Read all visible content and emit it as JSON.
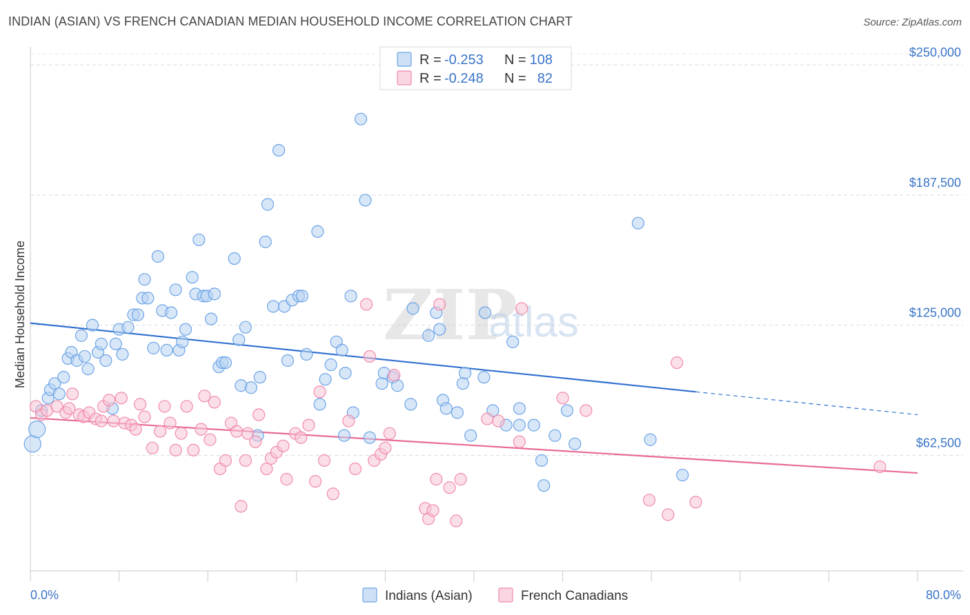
{
  "header": {
    "title": "INDIAN (ASIAN) VS FRENCH CANADIAN MEDIAN HOUSEHOLD INCOME CORRELATION CHART",
    "source": "Source: ZipAtlas.com"
  },
  "watermark": {
    "part1": "ZIP",
    "part2": "atlas"
  },
  "stats": [
    {
      "r_label": "R = ",
      "r_value": "-0.253",
      "n_label": "N = ",
      "n_value": "108",
      "color": "#6ba3e6"
    },
    {
      "r_label": "R = ",
      "r_value": "-0.248",
      "n_label": "N = ",
      "n_value": "82",
      "color": "#f08aab"
    }
  ],
  "chart_data": {
    "type": "scatter",
    "title": "INDIAN (ASIAN) VS FRENCH CANADIAN MEDIAN HOUSEHOLD INCOME CORRELATION CHART",
    "xlabel": "",
    "ylabel": "Median Household Income",
    "xlim": [
      0,
      80
    ],
    "ylim": [
      7000,
      258000
    ],
    "x_tick_labels": [
      "0.0%",
      "80.0%"
    ],
    "y_ticks": [
      62500,
      125000,
      187500,
      250000
    ],
    "y_tick_labels": [
      "$62,500",
      "$125,000",
      "$187,500",
      "$250,000"
    ],
    "grid": true,
    "legend_position": "bottom",
    "series": [
      {
        "name": "Indians (Asian)",
        "color": "#6ba3e6",
        "fill": "#b8d3f2",
        "r": -0.253,
        "n": 108,
        "trend": {
          "x0": 0,
          "y0": 126000,
          "x1": 60,
          "y1": 93000,
          "x_dash_end": 80,
          "y_dash_end": 82000
        },
        "points": [
          [
            0.2,
            68000
          ],
          [
            0.6,
            75000
          ],
          [
            1.0,
            84000
          ],
          [
            1.6,
            90000
          ],
          [
            1.8,
            94000
          ],
          [
            2.2,
            97000
          ],
          [
            2.6,
            92000
          ],
          [
            3.0,
            100000
          ],
          [
            3.4,
            109000
          ],
          [
            3.7,
            112000
          ],
          [
            4.2,
            108000
          ],
          [
            4.6,
            120000
          ],
          [
            4.9,
            110000
          ],
          [
            5.2,
            104000
          ],
          [
            5.6,
            125000
          ],
          [
            6.1,
            112000
          ],
          [
            6.4,
            116000
          ],
          [
            6.8,
            108000
          ],
          [
            7.4,
            85000
          ],
          [
            7.7,
            116000
          ],
          [
            8.0,
            123000
          ],
          [
            8.3,
            111000
          ],
          [
            8.8,
            124000
          ],
          [
            9.3,
            130000
          ],
          [
            9.7,
            130000
          ],
          [
            10.1,
            138000
          ],
          [
            10.3,
            147000
          ],
          [
            10.6,
            138000
          ],
          [
            11.1,
            114000
          ],
          [
            11.5,
            158000
          ],
          [
            11.9,
            132000
          ],
          [
            12.3,
            113000
          ],
          [
            12.7,
            131000
          ],
          [
            13.1,
            142000
          ],
          [
            13.4,
            113000
          ],
          [
            13.7,
            117000
          ],
          [
            14.0,
            123000
          ],
          [
            14.6,
            148000
          ],
          [
            14.9,
            140000
          ],
          [
            15.2,
            166000
          ],
          [
            15.6,
            139000
          ],
          [
            15.9,
            139000
          ],
          [
            16.3,
            128000
          ],
          [
            16.6,
            140000
          ],
          [
            17.0,
            105000
          ],
          [
            17.3,
            107000
          ],
          [
            17.6,
            107000
          ],
          [
            18.4,
            157000
          ],
          [
            18.8,
            118000
          ],
          [
            19.0,
            96000
          ],
          [
            19.4,
            124000
          ],
          [
            19.9,
            95000
          ],
          [
            20.5,
            72000
          ],
          [
            20.7,
            100000
          ],
          [
            21.2,
            165000
          ],
          [
            21.4,
            183000
          ],
          [
            21.9,
            134000
          ],
          [
            22.4,
            209000
          ],
          [
            22.9,
            134000
          ],
          [
            23.2,
            108000
          ],
          [
            23.6,
            137000
          ],
          [
            24.2,
            139000
          ],
          [
            24.5,
            139000
          ],
          [
            24.9,
            111000
          ],
          [
            25.9,
            170000
          ],
          [
            26.1,
            87000
          ],
          [
            26.6,
            99000
          ],
          [
            27.1,
            106000
          ],
          [
            27.6,
            117000
          ],
          [
            28.1,
            113000
          ],
          [
            28.3,
            72000
          ],
          [
            28.4,
            102000
          ],
          [
            28.9,
            139000
          ],
          [
            29.1,
            83000
          ],
          [
            29.8,
            224000
          ],
          [
            30.2,
            185000
          ],
          [
            30.6,
            71000
          ],
          [
            31.7,
            97000
          ],
          [
            31.9,
            102000
          ],
          [
            32.7,
            100000
          ],
          [
            33.1,
            96000
          ],
          [
            34.3,
            87000
          ],
          [
            34.5,
            133000
          ],
          [
            35.9,
            120000
          ],
          [
            36.6,
            131000
          ],
          [
            36.9,
            123000
          ],
          [
            37.2,
            89000
          ],
          [
            37.5,
            85000
          ],
          [
            38.5,
            83000
          ],
          [
            39.0,
            97000
          ],
          [
            39.2,
            102000
          ],
          [
            39.7,
            72000
          ],
          [
            40.9,
            100000
          ],
          [
            41.0,
            131000
          ],
          [
            41.7,
            84000
          ],
          [
            42.9,
            77000
          ],
          [
            43.5,
            117000
          ],
          [
            44.1,
            85000
          ],
          [
            44.1,
            77000
          ],
          [
            45.4,
            77000
          ],
          [
            46.1,
            60000
          ],
          [
            46.3,
            48000
          ],
          [
            47.3,
            72000
          ],
          [
            48.4,
            84000
          ],
          [
            49.1,
            68000
          ],
          [
            54.8,
            174000
          ],
          [
            55.9,
            70000
          ],
          [
            58.8,
            53000
          ]
        ]
      },
      {
        "name": "French Canadians",
        "color": "#f08aab",
        "fill": "#f7c4d5",
        "r": -0.248,
        "n": 82,
        "trend": {
          "x0": 0,
          "y0": 80500,
          "x1": 80,
          "y1": 54000
        },
        "points": [
          [
            0.5,
            86000
          ],
          [
            1.0,
            82000
          ],
          [
            1.5,
            84000
          ],
          [
            2.4,
            86000
          ],
          [
            3.2,
            83000
          ],
          [
            3.5,
            85000
          ],
          [
            3.8,
            92000
          ],
          [
            4.4,
            82000
          ],
          [
            4.8,
            81000
          ],
          [
            5.3,
            83000
          ],
          [
            5.9,
            80000
          ],
          [
            6.4,
            79000
          ],
          [
            6.6,
            86000
          ],
          [
            7.1,
            89000
          ],
          [
            7.5,
            79000
          ],
          [
            8.2,
            90000
          ],
          [
            8.5,
            78000
          ],
          [
            9.1,
            77000
          ],
          [
            9.5,
            75000
          ],
          [
            9.9,
            87000
          ],
          [
            10.3,
            81000
          ],
          [
            11.0,
            66000
          ],
          [
            11.7,
            74000
          ],
          [
            12.1,
            86000
          ],
          [
            12.6,
            78000
          ],
          [
            13.1,
            65000
          ],
          [
            13.6,
            73000
          ],
          [
            14.1,
            86000
          ],
          [
            14.7,
            65000
          ],
          [
            15.4,
            75000
          ],
          [
            15.7,
            91000
          ],
          [
            16.2,
            70000
          ],
          [
            16.6,
            88000
          ],
          [
            17.1,
            56000
          ],
          [
            17.6,
            60000
          ],
          [
            18.1,
            78000
          ],
          [
            18.6,
            74000
          ],
          [
            19.0,
            38000
          ],
          [
            19.4,
            60000
          ],
          [
            19.6,
            73000
          ],
          [
            20.3,
            69000
          ],
          [
            20.6,
            82000
          ],
          [
            21.3,
            56000
          ],
          [
            21.7,
            61000
          ],
          [
            22.2,
            64000
          ],
          [
            22.8,
            67000
          ],
          [
            23.1,
            51000
          ],
          [
            23.9,
            73000
          ],
          [
            24.4,
            71000
          ],
          [
            25.1,
            77000
          ],
          [
            25.7,
            50000
          ],
          [
            26.1,
            93000
          ],
          [
            26.5,
            60000
          ],
          [
            27.3,
            44000
          ],
          [
            28.7,
            79000
          ],
          [
            29.3,
            56000
          ],
          [
            30.3,
            135000
          ],
          [
            30.6,
            110000
          ],
          [
            31.0,
            60000
          ],
          [
            31.6,
            63000
          ],
          [
            32.0,
            66000
          ],
          [
            32.4,
            73000
          ],
          [
            32.8,
            101000
          ],
          [
            35.6,
            37000
          ],
          [
            35.9,
            32000
          ],
          [
            36.3,
            36000
          ],
          [
            36.6,
            51000
          ],
          [
            36.9,
            135000
          ],
          [
            37.8,
            47000
          ],
          [
            38.4,
            31000
          ],
          [
            38.8,
            51000
          ],
          [
            41.2,
            80000
          ],
          [
            42.2,
            79000
          ],
          [
            44.1,
            69000
          ],
          [
            44.3,
            133000
          ],
          [
            48.0,
            90000
          ],
          [
            50.1,
            84000
          ],
          [
            55.8,
            41000
          ],
          [
            57.5,
            34000
          ],
          [
            58.3,
            107000
          ],
          [
            60.0,
            40000
          ],
          [
            76.6,
            57000
          ]
        ]
      }
    ]
  },
  "legend": [
    {
      "label": "Indians (Asian)",
      "color": "#6ba3e6",
      "fill": "#b8d3f2"
    },
    {
      "label": "French Canadians",
      "color": "#f08aab",
      "fill": "#f7c4d5"
    }
  ]
}
